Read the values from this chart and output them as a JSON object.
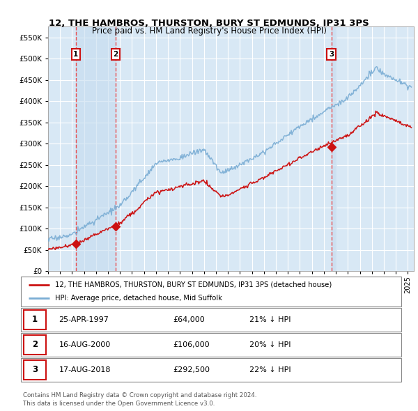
{
  "title": "12, THE HAMBROS, THURSTON, BURY ST EDMUNDS, IP31 3PS",
  "subtitle": "Price paid vs. HM Land Registry's House Price Index (HPI)",
  "xlim": [
    1995.0,
    2025.5
  ],
  "ylim": [
    0,
    575000
  ],
  "yticks": [
    0,
    50000,
    100000,
    150000,
    200000,
    250000,
    300000,
    350000,
    400000,
    450000,
    500000,
    550000
  ],
  "ytick_labels": [
    "£0",
    "£50K",
    "£100K",
    "£150K",
    "£200K",
    "£250K",
    "£300K",
    "£350K",
    "£400K",
    "£450K",
    "£500K",
    "£550K"
  ],
  "plot_bg_color": "#d8e8f5",
  "fig_bg_color": "#ffffff",
  "grid_color": "#ffffff",
  "sale_dates": [
    1997.32,
    2000.62,
    2018.62
  ],
  "sale_prices": [
    64000,
    106000,
    292500
  ],
  "sale_labels": [
    "1",
    "2",
    "3"
  ],
  "hpi_color": "#7aadd4",
  "sale_color": "#cc1111",
  "vline_color": "#ee3333",
  "shade_color": "#c5dcef",
  "legend_entries": [
    "12, THE HAMBROS, THURSTON, BURY ST EDMUNDS, IP31 3PS (detached house)",
    "HPI: Average price, detached house, Mid Suffolk"
  ],
  "table_rows": [
    {
      "num": "1",
      "date": "25-APR-1997",
      "price": "£64,000",
      "hpi": "21% ↓ HPI"
    },
    {
      "num": "2",
      "date": "16-AUG-2000",
      "price": "£106,000",
      "hpi": "20% ↓ HPI"
    },
    {
      "num": "3",
      "date": "17-AUG-2018",
      "price": "£292,500",
      "hpi": "22% ↓ HPI"
    }
  ],
  "footnote": "Contains HM Land Registry data © Crown copyright and database right 2024.\nThis data is licensed under the Open Government Licence v3.0."
}
